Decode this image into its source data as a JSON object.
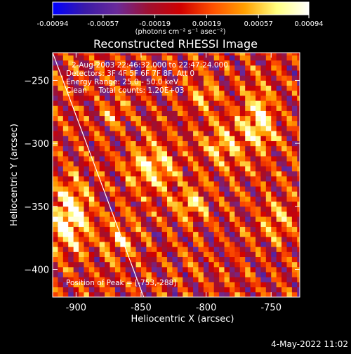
{
  "chart_data": {
    "type": "heatmap",
    "title": "Reconstructed RHESSI Image",
    "xlabel": "Heliocentric X (arcsec)",
    "ylabel": "Heliocentric Y (arcsec)",
    "xlim": [
      -918,
      -728
    ],
    "ylim": [
      -422,
      -228
    ],
    "x_ticks": [
      -900,
      -850,
      -800,
      -750
    ],
    "y_ticks": [
      -250,
      -300,
      -350,
      -400
    ],
    "x_tick_labels": [
      "-900",
      "-850",
      "-800",
      "-750"
    ],
    "y_tick_labels": [
      "−250",
      "−300",
      "−350",
      "−400"
    ],
    "grid": false,
    "colorbar": {
      "min": -0.00094,
      "max": 0.00094,
      "tick_values": [
        -0.00094,
        -0.00057,
        -0.00019,
        0.00019,
        0.00057,
        0.00094
      ],
      "tick_labels": [
        "-0.00094",
        "-0.00057",
        "-0.00019",
        "0.00019",
        "0.00057",
        "0.00094"
      ],
      "unit_label": "(photons cm⁻² s⁻¹ asec⁻²)",
      "colors": [
        "#0000ff",
        "#3a1aa8",
        "#6a2a9a",
        "#a01030",
        "#d00000",
        "#ff5000",
        "#ffa000",
        "#ffff80",
        "#ffffff"
      ]
    },
    "annotations": [
      "2-Aug-2003 22:46:32.000 to 22:47:24.000",
      "Detectors: 3F 4F 5F 6F 7F 8F, Att 0",
      "Energy Range: 25.0 - 50.0 keV",
      "Clean     Total counts: 1.20E+03"
    ],
    "peak_label": "Position of Peak = [-753,-288]",
    "limb_line": {
      "x": [
        -918,
        -848
      ],
      "y": [
        -228,
        -422
      ]
    },
    "hot_spots": [
      {
        "x": -905,
        "y": -358,
        "sigma_x": 10,
        "sigma_y": 18,
        "amplitude": 0.00094
      },
      {
        "x": -760,
        "y": -282,
        "sigma_x": 8,
        "sigma_y": 16,
        "amplitude": 0.00088
      },
      {
        "x": -843,
        "y": -318,
        "sigma_x": 12,
        "sigma_y": 12,
        "amplitude": 0.00075
      },
      {
        "x": -812,
        "y": -347,
        "sigma_x": 9,
        "sigma_y": 9,
        "amplitude": 0.0006
      },
      {
        "x": -786,
        "y": -300,
        "sigma_x": 10,
        "sigma_y": 14,
        "amplitude": 0.00055
      },
      {
        "x": -866,
        "y": -375,
        "sigma_x": 9,
        "sigma_y": 10,
        "amplitude": 0.0005
      },
      {
        "x": -800,
        "y": -260,
        "sigma_x": 8,
        "sigma_y": 8,
        "amplitude": 0.00045
      },
      {
        "x": -745,
        "y": -360,
        "sigma_x": 8,
        "sigma_y": 12,
        "amplitude": 0.0004
      },
      {
        "x": -870,
        "y": -275,
        "sigma_x": 8,
        "sigma_y": 8,
        "amplitude": 0.00035
      }
    ],
    "stripe_amplitude": 0.00045,
    "stripe_direction_deg": 35,
    "stripe_period_arcsec": 16,
    "pixel_size_arcsec": 4
  },
  "footer": {
    "date": "4-May-2022 11:02"
  }
}
